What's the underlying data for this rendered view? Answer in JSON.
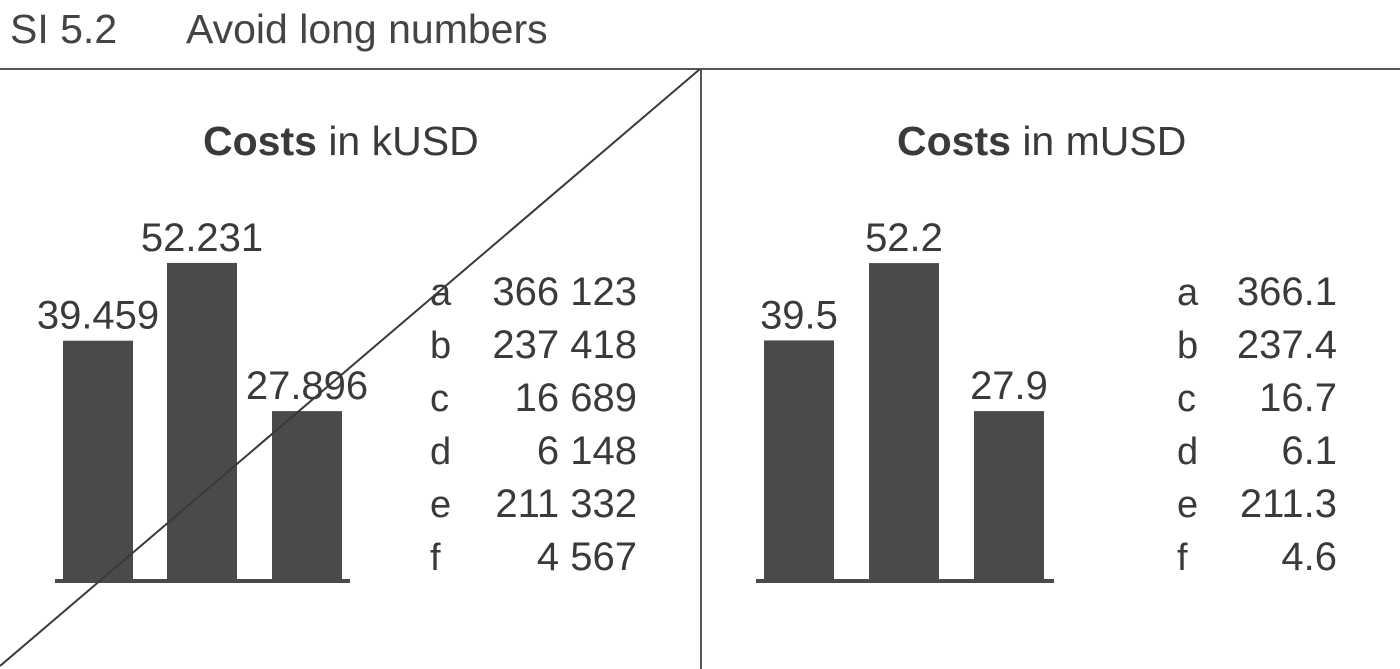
{
  "header": {
    "code": "SI 5.2",
    "title": "Avoid long numbers"
  },
  "colors": {
    "bar": "#4a4a4b",
    "text": "#3a3a3a",
    "rule": "#555555"
  },
  "chart_data": [
    {
      "type": "bar",
      "title_bold": "Costs",
      "title_rest": " in kUSD",
      "categories": [
        "",
        "",
        ""
      ],
      "values": [
        39.459,
        52.231,
        27.896
      ],
      "value_labels": [
        "39.459",
        "52.231",
        "27.896"
      ],
      "ylim": [
        0,
        60
      ],
      "crossed_out": true,
      "table": {
        "letters": [
          "a",
          "b",
          "c",
          "d",
          "e",
          "f"
        ],
        "values": [
          "366 123",
          "237 418",
          "16 689",
          "6 148",
          "211 332",
          "4 567"
        ]
      }
    },
    {
      "type": "bar",
      "title_bold": "Costs",
      "title_rest": " in mUSD",
      "categories": [
        "",
        "",
        ""
      ],
      "values": [
        39.5,
        52.2,
        27.9
      ],
      "value_labels": [
        "39.5",
        "52.2",
        "27.9"
      ],
      "ylim": [
        0,
        60
      ],
      "crossed_out": false,
      "table": {
        "letters": [
          "a",
          "b",
          "c",
          "d",
          "e",
          "f"
        ],
        "values": [
          "366.1",
          "237.4",
          "16.7",
          "6.1",
          "211.3",
          "4.6"
        ]
      }
    }
  ]
}
